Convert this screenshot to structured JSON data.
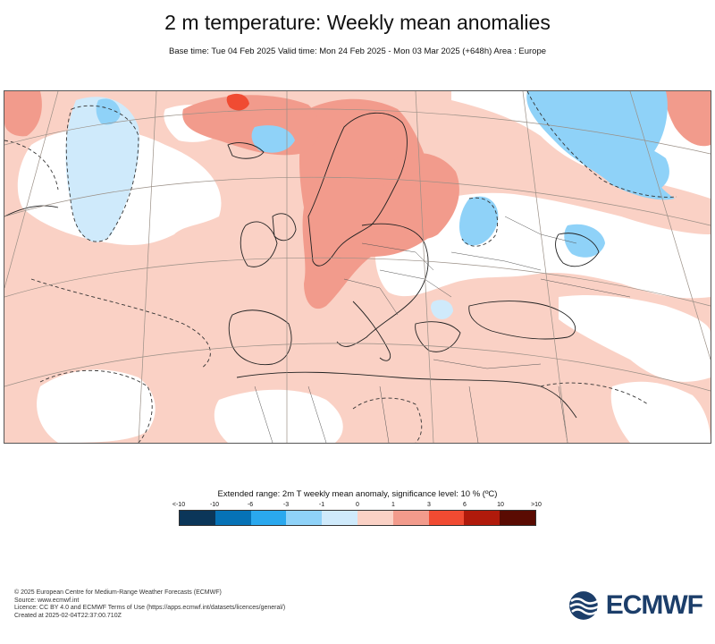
{
  "title": "2 m temperature: Weekly mean anomalies",
  "subtitle": "Base time: Tue 04 Feb 2025 Valid time: Mon 24 Feb 2025 - Mon 03 Mar 2025 (+648h) Area : Europe",
  "legend": {
    "title": "Extended range: 2m T weekly mean anomaly, significance level: 10 % (ºC)",
    "ticks": [
      "<-10",
      "-10",
      "-6",
      "-3",
      "-1",
      "0",
      "1",
      "3",
      "6",
      "10",
      ">10"
    ],
    "colors": [
      "#0b3659",
      "#0672b6",
      "#2aa8ee",
      "#8fd2f8",
      "#cfeafb",
      "#fad1c5",
      "#f29b8c",
      "#f04b32",
      "#b01a0b",
      "#5a0b02"
    ]
  },
  "map": {
    "region": "Europe",
    "significant_contour_style": "dashed",
    "anomaly_colors": {
      "slightly_warm": "#fad1c5",
      "warm": "#f29b8c",
      "cold": "#8fd2f8",
      "slightly_cold": "#cfeafb",
      "neutral": "#ffffff"
    }
  },
  "footer": {
    "copyright": "© 2025 European Centre for Medium-Range Weather Forecasts (ECMWF)",
    "source": "Source: www.ecmwf.int",
    "licence": "Licence: CC BY 4.0 and ECMWF Terms of Use (https://apps.ecmwf.int/datasets/licences/general/)",
    "created": "Created at 2025-02-04T22:37:00.710Z"
  },
  "logo": {
    "text": "ECMWF",
    "color": "#1c3e6a"
  }
}
